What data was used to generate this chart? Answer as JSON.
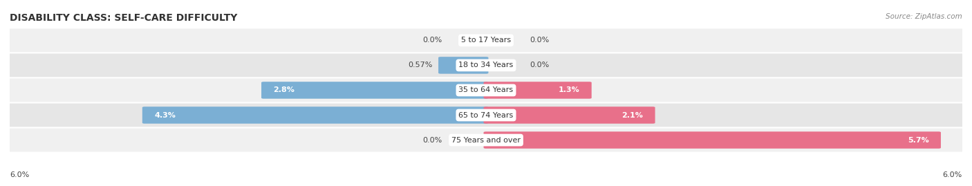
{
  "title": "DISABILITY CLASS: SELF-CARE DIFFICULTY",
  "source": "Source: ZipAtlas.com",
  "categories": [
    "5 to 17 Years",
    "18 to 34 Years",
    "35 to 64 Years",
    "65 to 74 Years",
    "75 Years and over"
  ],
  "male_values": [
    0.0,
    0.57,
    2.8,
    4.3,
    0.0
  ],
  "female_values": [
    0.0,
    0.0,
    1.3,
    2.1,
    5.7
  ],
  "male_labels": [
    "0.0%",
    "0.57%",
    "2.8%",
    "4.3%",
    "0.0%"
  ],
  "female_labels": [
    "0.0%",
    "0.0%",
    "1.3%",
    "2.1%",
    "5.7%"
  ],
  "male_color": "#7bafd4",
  "female_color": "#e8708a",
  "row_bg_odd": "#f0f0f0",
  "row_bg_even": "#e6e6e6",
  "max_val": 6.0,
  "axis_label": "6.0%",
  "title_fontsize": 10,
  "label_fontsize": 8,
  "category_fontsize": 8,
  "legend_fontsize": 8,
  "source_fontsize": 7.5,
  "inside_label_threshold": 1.0
}
